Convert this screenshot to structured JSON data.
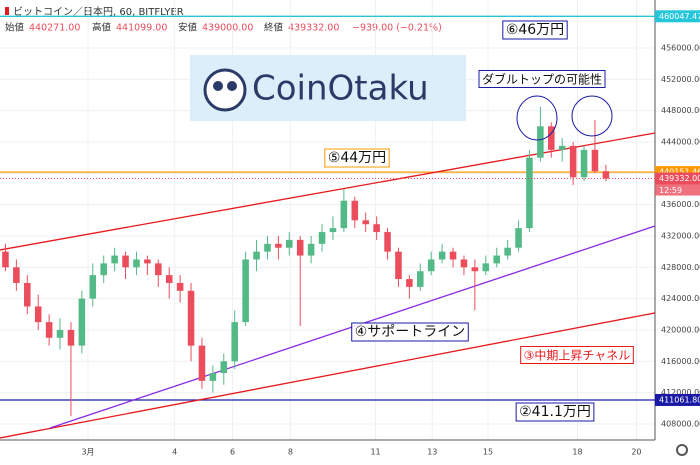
{
  "header": {
    "pair": "ビットコイン／日本円, 60, BITFLYER",
    "open_label": "始値",
    "open": "440271.00",
    "high_label": "高値",
    "high": "441099.00",
    "low_label": "安値",
    "low": "439000.00",
    "close_label": "終値",
    "close": "439332.00",
    "change": "−939.00 (−0.21%)"
  },
  "chart_data": {
    "type": "candlestick",
    "x": [
      0.5,
      1.5,
      2.5,
      3.5,
      4.5,
      5.5,
      6.5,
      7.5,
      8.5,
      9.5,
      10.5,
      11.5,
      12.5,
      13.5,
      14.5,
      15.5,
      16.5,
      17.5,
      18.5,
      19.5,
      20.5,
      21.5,
      22.5,
      23.5,
      24.5,
      25.5,
      26.5,
      27.5,
      28.5,
      29.5,
      30.5,
      31.5,
      32.5,
      33.5,
      34.5,
      35.5,
      36.5,
      37.5,
      38.5,
      39.5,
      40.5,
      41.5,
      42.5,
      43.5,
      44.5,
      45.5,
      46.5,
      47.5,
      48.5,
      49.5,
      50.5,
      51.5,
      52.5,
      53.5,
      54.5,
      55.5
    ],
    "open": [
      430000,
      428000,
      426000,
      423000,
      421000,
      419000,
      420000,
      418000,
      424000,
      427000,
      428500,
      429500,
      428000,
      429000,
      428500,
      427000,
      426000,
      425000,
      418000,
      413500,
      414500,
      416000,
      421000,
      429000,
      430000,
      431000,
      430500,
      431500,
      429500,
      431000,
      432500,
      433000,
      436500,
      434000,
      433500,
      432500,
      430000,
      426500,
      425500,
      427500,
      429000,
      430000,
      429000,
      428000,
      427500,
      428500,
      429500,
      430500,
      433000,
      442000,
      446000,
      443000,
      443500,
      439500,
      443000,
      440271
    ],
    "high": [
      431000,
      429000,
      427000,
      424500,
      422000,
      421500,
      421000,
      425000,
      428500,
      429500,
      430500,
      430000,
      430000,
      429500,
      429000,
      428000,
      427000,
      426000,
      419000,
      415500,
      417000,
      422500,
      430000,
      431500,
      432000,
      432000,
      432500,
      432000,
      432000,
      433500,
      434500,
      438000,
      437000,
      435000,
      434500,
      433000,
      430500,
      427000,
      428500,
      430000,
      431000,
      430500,
      429500,
      429000,
      429500,
      430500,
      431500,
      434000,
      443000,
      448500,
      446500,
      444500,
      444000,
      443500,
      446800,
      441099
    ],
    "low": [
      427500,
      425000,
      422000,
      420000,
      418000,
      417500,
      409000,
      417000,
      423000,
      426000,
      427500,
      426500,
      427000,
      427000,
      425500,
      424000,
      423500,
      416000,
      412500,
      412000,
      413000,
      415000,
      420500,
      427500,
      429000,
      429000,
      429500,
      420500,
      428500,
      430000,
      431500,
      432500,
      433000,
      432500,
      431500,
      429000,
      425500,
      424000,
      425000,
      427000,
      428500,
      428000,
      427000,
      422500,
      427000,
      428000,
      429000,
      430000,
      432500,
      441500,
      442000,
      441500,
      438500,
      439000,
      440000,
      439000
    ],
    "close": [
      428000,
      426000,
      423000,
      421000,
      419000,
      420000,
      418000,
      424000,
      427000,
      428500,
      429500,
      428000,
      429000,
      428500,
      427000,
      426000,
      425000,
      418000,
      413500,
      414500,
      416000,
      421000,
      429000,
      430000,
      431000,
      430500,
      431500,
      429500,
      431000,
      432500,
      433000,
      436500,
      434000,
      433500,
      432500,
      430000,
      426500,
      425500,
      427500,
      429000,
      430000,
      429000,
      428000,
      427500,
      428500,
      429500,
      430500,
      433000,
      442000,
      446000,
      443000,
      443500,
      439500,
      443000,
      440271,
      439332
    ],
    "up_color": "#53b987",
    "down_color": "#eb4d5c",
    "xlim": [
      0,
      60
    ],
    "ylim": [
      405950,
      462130
    ],
    "xticks": [
      {
        "value": 8.06,
        "label": "3月"
      },
      {
        "value": 16.0,
        "label": "4"
      },
      {
        "value": 21.3,
        "label": "6"
      },
      {
        "value": 26.6,
        "label": "8"
      },
      {
        "value": 34.4,
        "label": "11"
      },
      {
        "value": 39.6,
        "label": "13"
      },
      {
        "value": 44.7,
        "label": "15"
      },
      {
        "value": 52.9,
        "label": "18"
      },
      {
        "value": 58.3,
        "label": "20"
      }
    ],
    "yticks": [
      {
        "value": 408000,
        "label": "408000.00"
      },
      {
        "value": 412000,
        "label": "412000.00"
      },
      {
        "value": 416000,
        "label": "416000.00"
      },
      {
        "value": 420000,
        "label": "420000.00"
      },
      {
        "value": 424000,
        "label": "424000.00"
      },
      {
        "value": 428000,
        "label": "428000.00"
      },
      {
        "value": 432000,
        "label": "432000.00"
      },
      {
        "value": 436000,
        "label": "436000.00"
      },
      {
        "value": 440000,
        "label": "440000.00"
      },
      {
        "value": 444000,
        "label": "444000.00"
      },
      {
        "value": 448000,
        "label": "448000.00"
      },
      {
        "value": 452000,
        "label": "452000.00"
      },
      {
        "value": 456000,
        "label": "456000.00"
      }
    ],
    "grid": true,
    "levels": [
      {
        "value": 460047.47,
        "label": "460047.47",
        "color": "#26c6da"
      },
      {
        "value": 440151.46,
        "label": "440151.46",
        "color": "#ff9800"
      },
      {
        "value": 411061.8,
        "label": "411061.80",
        "color": "#1a1aa6"
      }
    ],
    "last_price": {
      "value": 439332,
      "label": "439332.00",
      "time": "12:59",
      "color": "#eb4d5c"
    },
    "trendlines": [
      {
        "color": "#e8191c",
        "x": [
          0,
          60
        ],
        "y": [
          430215,
          445153
        ]
      },
      {
        "color": "#e8191c",
        "x": [
          0,
          60
        ],
        "y": [
          406213,
          422172
        ]
      },
      {
        "color": "#8a2be2",
        "x": [
          4.58,
          60
        ],
        "y": [
          407489,
          433280
        ]
      }
    ],
    "annotations": [
      {
        "text": "⑥46万円",
        "color": "#1a1aa6"
      },
      {
        "text": "⑤44万円",
        "color": "#ff9800"
      },
      {
        "text": "ダブルトップの可能性",
        "color": "#1a1aa6"
      },
      {
        "text": "④サポートライン",
        "color": "#1a1aa6"
      },
      {
        "text": "③中期上昇チャネル",
        "color": "#e8191c"
      },
      {
        "text": "②41.1万円",
        "color": "#1a1aa6"
      }
    ],
    "logo": "CoinOtaku"
  }
}
